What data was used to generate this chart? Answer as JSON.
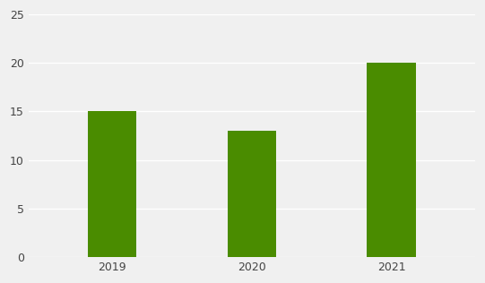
{
  "categories": [
    "2019",
    "2020",
    "2021"
  ],
  "values": [
    15,
    13,
    20
  ],
  "bar_color": "#4a8c00",
  "ylim": [
    0,
    25
  ],
  "yticks": [
    0,
    5,
    10,
    15,
    20,
    25
  ],
  "background_color": "#f0f0f0",
  "plot_bg_color": "#f0f0f0",
  "grid_color": "#ffffff",
  "bar_width": 0.35,
  "tick_fontsize": 9,
  "label_color": "#444444",
  "figsize": [
    5.41,
    3.16
  ],
  "dpi": 100
}
